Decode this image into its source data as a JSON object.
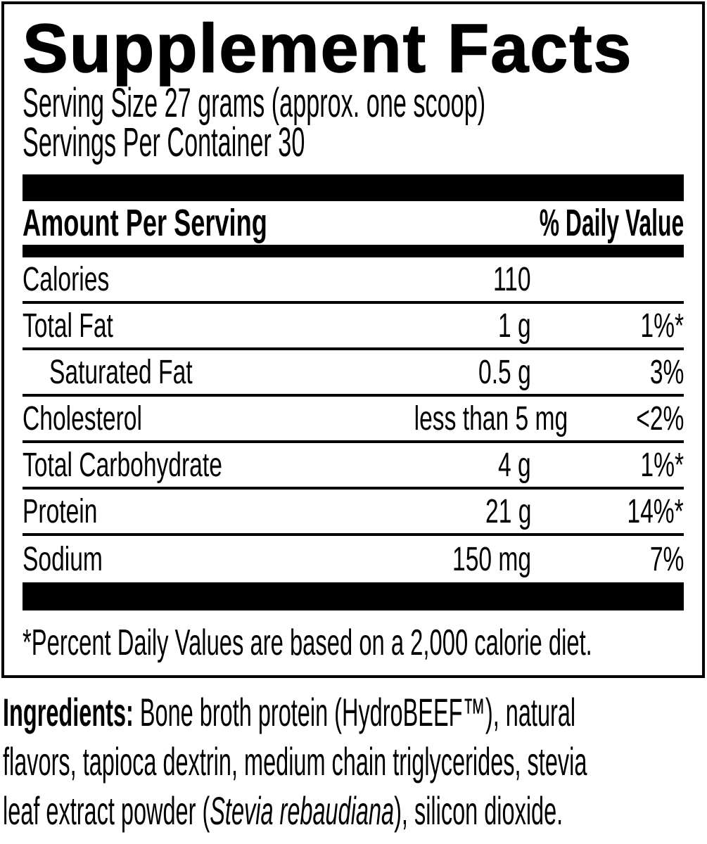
{
  "label": {
    "title": "Supplement Facts",
    "serving_size": "Serving Size 27 grams (approx. one scoop)",
    "servings_per_container": "Servings Per Container 30",
    "header": {
      "amount_per_serving": "Amount Per Serving",
      "daily_value": "% Daily Value"
    },
    "rows": [
      {
        "name": "Calories",
        "amount": "110",
        "dv": "",
        "indent": false
      },
      {
        "name": "Total Fat",
        "amount": "1 g",
        "dv": "1%*",
        "indent": false
      },
      {
        "name": "Saturated Fat",
        "amount": "0.5 g",
        "dv": "3%",
        "indent": true
      },
      {
        "name": "Cholesterol",
        "amount": "less than 5 mg",
        "dv": "<2%",
        "indent": false
      },
      {
        "name": "Total Carbohydrate",
        "amount": "4 g",
        "dv": "1%*",
        "indent": false
      },
      {
        "name": "Protein",
        "amount": "21 g",
        "dv": "14%*",
        "indent": false
      },
      {
        "name": "Sodium",
        "amount": "150 mg",
        "dv": "7%",
        "indent": false
      }
    ],
    "footnote": "*Percent Daily Values are based on a 2,000 calorie diet."
  },
  "ingredients": {
    "line1_label": "Ingredients:",
    "line1_rest": " Bone broth protein (HydroBEEF™), natural",
    "line2": "flavors, tapioca dextrin, medium chain triglycerides, stevia",
    "line3_pre": "leaf extract powder (",
    "line3_italic": "Stevia rebaudiana",
    "line3_post": "), silicon dioxide."
  },
  "colors": {
    "ink": "#000000",
    "background": "#ffffff"
  }
}
